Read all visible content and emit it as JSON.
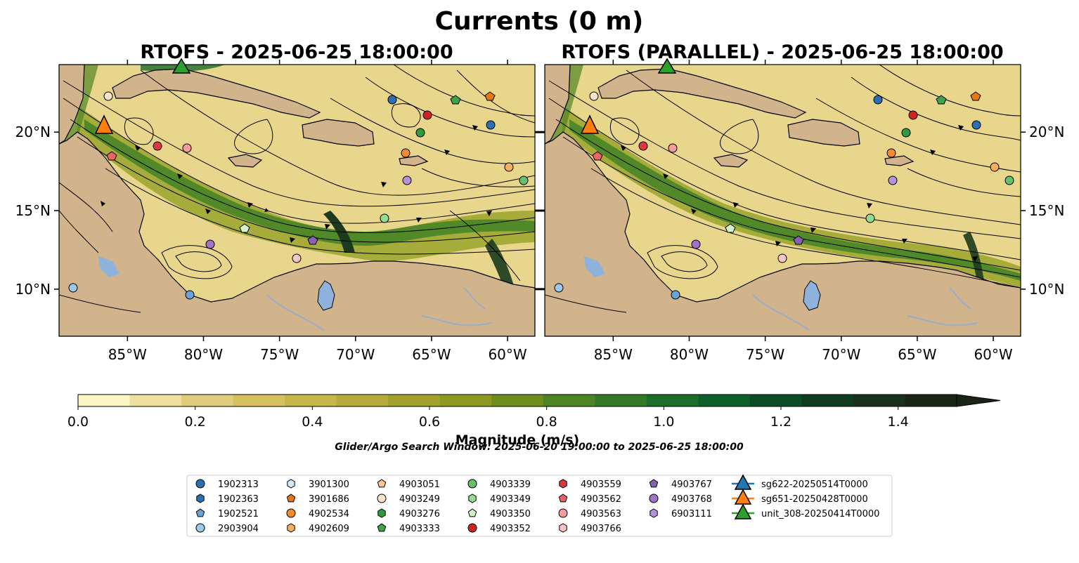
{
  "figure": {
    "title": "Currents (0 m)",
    "window_text": "Glider/Argo Search Window: 2025-06-20 19:00:00 to 2025-06-25 18:00:00"
  },
  "panels": [
    {
      "title": "RTOFS - 2025-06-25 18:00:00"
    },
    {
      "title": "RTOFS (PARALLEL) - 2025-06-25 18:00:00"
    }
  ],
  "map": {
    "lon_range": [
      -89.5,
      -58.2
    ],
    "lat_range": [
      7.0,
      24.3
    ],
    "lon_ticks": [
      "85°W",
      "80°W",
      "75°W",
      "70°W",
      "65°W",
      "60°W"
    ],
    "lon_tick_values": [
      -85,
      -80,
      -75,
      -70,
      -65,
      -60
    ],
    "lat_ticks": [
      "20°N",
      "15°N",
      "10°N"
    ],
    "lat_tick_values": [
      20,
      15,
      10
    ],
    "colors": {
      "land": "#d2b48c",
      "lakes": "#8fb2dc",
      "rivers": "#9aaec8",
      "coast": "#000000"
    }
  },
  "colorbar": {
    "label": "Magnitude (m/s)",
    "min": 0.0,
    "max": 1.5,
    "extend": "max",
    "tick_values": [
      0.0,
      0.2,
      0.4,
      0.6,
      0.8,
      1.0,
      1.2,
      1.4
    ],
    "tick_labels": [
      "0.0",
      "0.2",
      "0.4",
      "0.6",
      "0.8",
      "1.0",
      "1.2",
      "1.4"
    ],
    "colors": [
      "#fbf5c3",
      "#efe0a0",
      "#e2cc7c",
      "#d7c05e",
      "#c9b64a",
      "#b8aa3c",
      "#a2a12c",
      "#8d9a1f",
      "#6f8e1d",
      "#4f8422",
      "#337a25",
      "#1c6d2a",
      "#0f5f2a",
      "#0b4e26",
      "#103d22",
      "#18301c",
      "#1a2414"
    ]
  },
  "legend": {
    "columns": [
      [
        {
          "label": "1902313",
          "marker": "circle",
          "color": "#2c6fae"
        },
        {
          "label": "1902363",
          "marker": "hexagon",
          "color": "#2c6fae"
        },
        {
          "label": "1902521",
          "marker": "pentagon",
          "color": "#6aa4d6"
        },
        {
          "label": "2903904",
          "marker": "circle",
          "color": "#9dc9ea"
        }
      ],
      [
        {
          "label": "3901300",
          "marker": "hexagon",
          "color": "#cfe8f7"
        },
        {
          "label": "3901686",
          "marker": "pentagon",
          "color": "#e6780f"
        },
        {
          "label": "4902534",
          "marker": "circle",
          "color": "#f28a2e"
        },
        {
          "label": "4902609",
          "marker": "hexagon",
          "color": "#f6ad5c"
        }
      ],
      [
        {
          "label": "4903051",
          "marker": "pentagon",
          "color": "#f7c795"
        },
        {
          "label": "4903249",
          "marker": "circle",
          "color": "#fbe4cc"
        },
        {
          "label": "4903276",
          "marker": "hexagon",
          "color": "#2f9b3a"
        },
        {
          "label": "4903333",
          "marker": "pentagon",
          "color": "#3ea547"
        }
      ],
      [
        {
          "label": "4903339",
          "marker": "circle",
          "color": "#67c16a"
        },
        {
          "label": "4903349",
          "marker": "hexagon",
          "color": "#96dc8e"
        },
        {
          "label": "4903350",
          "marker": "pentagon",
          "color": "#d5f2c9"
        },
        {
          "label": "4903352",
          "marker": "circle",
          "color": "#cf2323"
        }
      ],
      [
        {
          "label": "4903559",
          "marker": "hexagon",
          "color": "#d93b3b"
        },
        {
          "label": "4903562",
          "marker": "pentagon",
          "color": "#eb6468"
        },
        {
          "label": "4903563",
          "marker": "circle",
          "color": "#f59c9c"
        },
        {
          "label": "4903766",
          "marker": "hexagon",
          "color": "#fbc6c6"
        }
      ],
      [
        {
          "label": "4903767",
          "marker": "pentagon",
          "color": "#8a5fb6"
        },
        {
          "label": "4903768",
          "marker": "circle",
          "color": "#9e73c8"
        },
        {
          "label": "6903111",
          "marker": "hexagon",
          "color": "#b592dc"
        }
      ],
      [
        {
          "label": "sg622-20250514T0000",
          "marker": "triangle",
          "color": "#1f77b4"
        },
        {
          "label": "sg651-20250428T0000",
          "marker": "triangle",
          "color": "#ff7f0e"
        },
        {
          "label": "unit_308-20250414T0000",
          "marker": "triangle",
          "color": "#2ca02c"
        }
      ]
    ]
  }
}
